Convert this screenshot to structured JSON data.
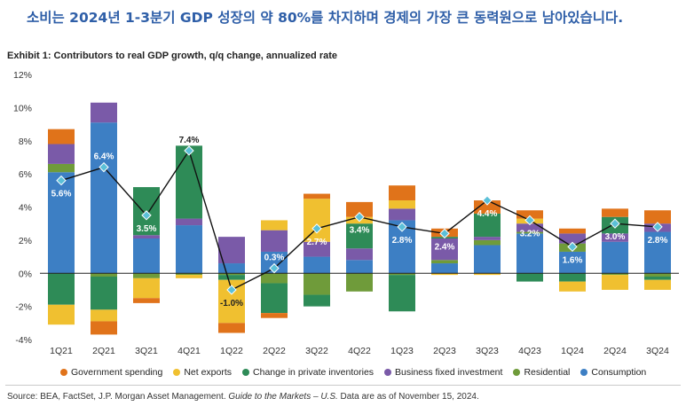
{
  "headline": "소비는 2024년 1-3분기 GDP 성장의 약 80%를 차지하며 경제의 가장 큰 동력원으로 남아있습니다.",
  "source": {
    "prefix": "Source: BEA, FactSet, J.P. Morgan Asset Management. ",
    "italic": "Guide to the Markets – U.S.",
    "suffix": " Data are as of November 15, 2024."
  },
  "chart_data": {
    "type": "bar",
    "stacked": true,
    "title": "Exhibit 1: Contributors to real GDP growth, q/q change, annualized rate",
    "xlabel": "",
    "ylabel": "",
    "ylim": [
      -4,
      12
    ],
    "yticks": [
      -4,
      -2,
      0,
      2,
      4,
      6,
      8,
      10,
      12
    ],
    "ytick_labels": [
      "-4%",
      "-2%",
      "0%",
      "2%",
      "4%",
      "6%",
      "8%",
      "10%",
      "12%"
    ],
    "grid": false,
    "legend_position": "bottom",
    "categories": [
      "1Q21",
      "2Q21",
      "3Q21",
      "4Q21",
      "1Q22",
      "2Q22",
      "3Q22",
      "4Q22",
      "1Q23",
      "2Q23",
      "3Q23",
      "4Q23",
      "1Q24",
      "2Q24",
      "3Q24"
    ],
    "series": [
      {
        "name": "Consumption",
        "color": "#3d7fc4",
        "values": [
          6.1,
          9.1,
          2.1,
          2.9,
          0.6,
          1.3,
          1.0,
          0.8,
          3.2,
          0.6,
          1.7,
          2.4,
          1.3,
          1.9,
          2.5
        ]
      },
      {
        "name": "Residential",
        "color": "#6f9b3a",
        "values": [
          0.5,
          -0.2,
          -0.3,
          -0.1,
          -0.1,
          -0.6,
          -1.3,
          -1.1,
          -0.1,
          0.2,
          0.3,
          0.1,
          0.5,
          -0.1,
          -0.2
        ]
      },
      {
        "name": "Business fixed investment",
        "color": "#7a5aa8",
        "values": [
          1.2,
          1.2,
          0.2,
          0.4,
          1.6,
          1.3,
          0.9,
          0.7,
          0.7,
          1.3,
          0.2,
          0.5,
          0.6,
          0.5,
          0.5
        ]
      },
      {
        "name": "Change in private inventories",
        "color": "#2e8b57",
        "values": [
          -1.9,
          -2.0,
          2.9,
          4.4,
          -0.3,
          -1.8,
          -0.7,
          1.5,
          -2.2,
          0.1,
          1.4,
          -0.5,
          -0.5,
          1.0,
          -0.2
        ]
      },
      {
        "name": "Net exports",
        "color": "#f0c030",
        "values": [
          -1.2,
          -0.7,
          -1.2,
          -0.2,
          -2.6,
          0.6,
          2.6,
          0.4,
          0.5,
          -0.1,
          -0.1,
          0.3,
          -0.6,
          -0.9,
          -0.6
        ]
      },
      {
        "name": "Government spending",
        "color": "#e0731a",
        "values": [
          0.9,
          -0.8,
          -0.3,
          0.0,
          -0.6,
          -0.3,
          0.3,
          0.9,
          0.9,
          0.5,
          0.8,
          0.5,
          0.3,
          0.5,
          0.8
        ]
      }
    ],
    "legend_order": [
      "Government spending",
      "Net exports",
      "Change in private inventories",
      "Business fixed investment",
      "Residential",
      "Consumption"
    ],
    "line": {
      "name": "Real GDP growth",
      "values": [
        5.6,
        6.4,
        3.5,
        7.4,
        -1.0,
        0.3,
        2.7,
        3.4,
        2.8,
        2.4,
        4.4,
        3.2,
        1.6,
        3.0,
        2.8
      ],
      "labels": [
        "5.6%",
        "6.4%",
        "3.5%",
        "7.4%",
        "-1.0%",
        "0.3%",
        "2.7%",
        "3.4%",
        "2.8%",
        "2.4%",
        "4.4%",
        "3.2%",
        "1.6%",
        "3.0%",
        "2.8%"
      ],
      "marker_color": "#5bc0d8"
    }
  }
}
